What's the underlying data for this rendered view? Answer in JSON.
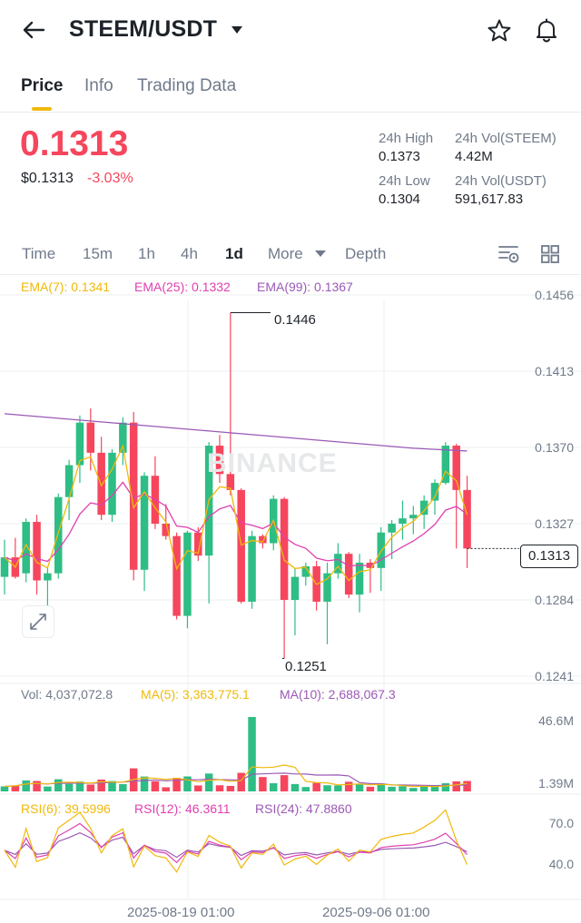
{
  "header": {
    "back_icon": "arrow-left-icon",
    "title": "STEEM/USDT",
    "dropdown_icon": "caret-down-icon",
    "star_icon": "star-icon",
    "bell_icon": "bell-icon"
  },
  "tabs": [
    {
      "label": "Price",
      "active": true
    },
    {
      "label": "Info"
    },
    {
      "label": "Trading Data"
    }
  ],
  "ticker": {
    "last_price": "0.1313",
    "usd_price": "$0.1313",
    "change": "-3.03%",
    "high_label": "24h High",
    "high": "0.1373",
    "low_label": "24h Low",
    "low": "0.1304",
    "vol_base_label": "24h Vol(STEEM)",
    "vol_base": "4.42M",
    "vol_quote_label": "24h Vol(USDT)",
    "vol_quote": "591,617.83"
  },
  "timeframes": [
    {
      "label": "Time"
    },
    {
      "label": "15m"
    },
    {
      "label": "1h"
    },
    {
      "label": "4h"
    },
    {
      "label": "1d",
      "active": true
    },
    {
      "label": "More"
    },
    {
      "label": "Depth"
    }
  ],
  "indicators": {
    "ema7": "EMA(7): 0.1341",
    "ema25": "EMA(25): 0.1332",
    "ema99": "EMA(99): 0.1367"
  },
  "watermark": "BINANCE",
  "volume": {
    "vol": "Vol: 4,037,072.8",
    "ma5": "MA(5): 3,363,775.1",
    "ma10": "MA(10): 2,688,067.3",
    "max_label": "46.6M",
    "min_label": "1.39M"
  },
  "rsi": {
    "rsi6": "RSI(6): 39.5996",
    "rsi12": "RSI(12): 46.3611",
    "rsi24": "RSI(24): 47.8860",
    "top": "70.0",
    "mid": "40.0"
  },
  "colors": {
    "up": "#2ebd85",
    "down": "#f6465d",
    "ema7": "#f0b90b",
    "ema25": "#e040b0",
    "ema99": "#9b59b6",
    "accent": "#f0b90b"
  },
  "chart_data": {
    "type": "candlestick",
    "interval": "1d",
    "price_axis": [
      "0.1456",
      "0.1413",
      "0.1370",
      "0.1327",
      "0.1284",
      "0.1241"
    ],
    "high_marker": "0.1446",
    "low_marker": "0.1251",
    "last_marker": "0.1313",
    "x_labels": [
      "2025-08-19 01:00",
      "2025-09-06 01:00"
    ],
    "candles": [
      [
        0.1297,
        0.1318,
        0.1287,
        0.1308
      ],
      [
        0.1308,
        0.1319,
        0.1296,
        0.1297
      ],
      [
        0.1299,
        0.133,
        0.1294,
        0.1328
      ],
      [
        0.1328,
        0.1332,
        0.1287,
        0.1295
      ],
      [
        0.1295,
        0.1302,
        0.1277,
        0.1299
      ],
      [
        0.1299,
        0.1344,
        0.1296,
        0.1342
      ],
      [
        0.1342,
        0.1363,
        0.1329,
        0.136
      ],
      [
        0.136,
        0.1388,
        0.135,
        0.1384
      ],
      [
        0.1384,
        0.1392,
        0.1357,
        0.1367
      ],
      [
        0.1367,
        0.1376,
        0.1329,
        0.1332
      ],
      [
        0.1332,
        0.1369,
        0.1328,
        0.1367
      ],
      [
        0.1367,
        0.1387,
        0.136,
        0.1384
      ],
      [
        0.1384,
        0.139,
        0.1295,
        0.1301
      ],
      [
        0.1301,
        0.1356,
        0.1289,
        0.1354
      ],
      [
        0.1354,
        0.1365,
        0.1324,
        0.1327
      ],
      [
        0.1327,
        0.1338,
        0.1318,
        0.132
      ],
      [
        0.132,
        0.1322,
        0.1273,
        0.1275
      ],
      [
        0.1275,
        0.1323,
        0.1268,
        0.1322
      ],
      [
        0.1322,
        0.1325,
        0.1306,
        0.1309
      ],
      [
        0.1309,
        0.1373,
        0.1282,
        0.1371
      ],
      [
        0.1371,
        0.1377,
        0.135,
        0.1355
      ],
      [
        0.1355,
        0.1446,
        0.1343,
        0.1346
      ],
      [
        0.1346,
        0.1347,
        0.1282,
        0.1283
      ],
      [
        0.1283,
        0.1323,
        0.1279,
        0.132
      ],
      [
        0.132,
        0.1321,
        0.1313,
        0.1316
      ],
      [
        0.1316,
        0.1343,
        0.1312,
        0.1341
      ],
      [
        0.1341,
        0.1342,
        0.1251,
        0.1284
      ],
      [
        0.1284,
        0.1302,
        0.1264,
        0.1297
      ],
      [
        0.1297,
        0.1305,
        0.1292,
        0.1303
      ],
      [
        0.1303,
        0.1306,
        0.1278,
        0.1283
      ],
      [
        0.1283,
        0.1305,
        0.1259,
        0.1299
      ],
      [
        0.1299,
        0.1316,
        0.1296,
        0.131
      ],
      [
        0.131,
        0.1311,
        0.1285,
        0.1287
      ],
      [
        0.1287,
        0.131,
        0.1277,
        0.1305
      ],
      [
        0.1305,
        0.1307,
        0.1288,
        0.1302
      ],
      [
        0.1302,
        0.1325,
        0.1289,
        0.1322
      ],
      [
        0.1322,
        0.1329,
        0.1307,
        0.1327
      ],
      [
        0.1327,
        0.134,
        0.1318,
        0.133
      ],
      [
        0.133,
        0.1337,
        0.1321,
        0.1332
      ],
      [
        0.1332,
        0.1343,
        0.1324,
        0.134
      ],
      [
        0.134,
        0.1352,
        0.1332,
        0.135
      ],
      [
        0.135,
        0.1373,
        0.1349,
        0.1371
      ],
      [
        0.1371,
        0.1372,
        0.1313,
        0.1346
      ],
      [
        0.1346,
        0.1354,
        0.1302,
        0.1313
      ]
    ]
  }
}
